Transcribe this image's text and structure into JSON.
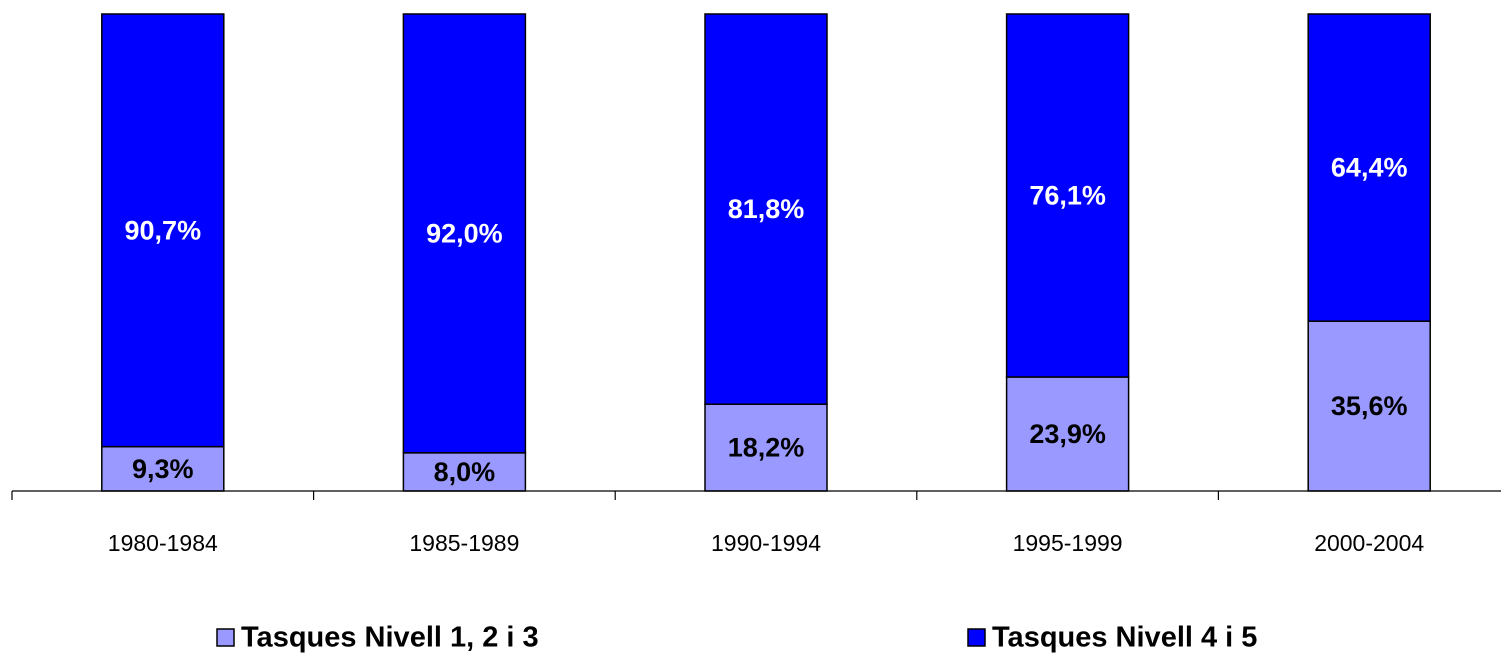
{
  "chart_data": {
    "type": "stacked_bar",
    "categories": [
      "1980-1984",
      "1985-1989",
      "1990-1994",
      "1995-1999",
      "2000-2004"
    ],
    "series": [
      {
        "name": "Tasques Nivell 1, 2 i 3",
        "color": "#9999ff",
        "label_color": "#000000",
        "values": [
          9.3,
          8.0,
          18.2,
          23.9,
          35.6
        ],
        "value_labels": [
          "9,3%",
          "8,0%",
          "18,2%",
          "23,9%",
          "35,6%"
        ]
      },
      {
        "name": "Tasques Nivell 4 i 5",
        "color": "#0000ff",
        "label_color": "#ffffff",
        "values": [
          90.7,
          92.0,
          81.8,
          76.1,
          64.4
        ],
        "value_labels": [
          "90,7%",
          "92,0%",
          "81,8%",
          "76,1%",
          "64,4%"
        ]
      }
    ],
    "ylim": [
      0,
      100
    ],
    "legend": "bottom"
  }
}
